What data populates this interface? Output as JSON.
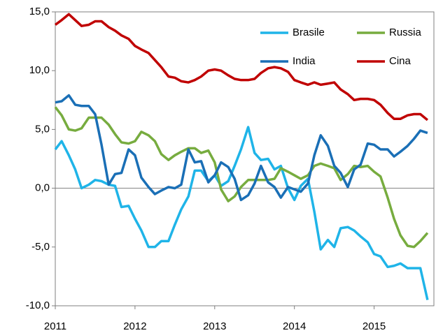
{
  "chart_data": {
    "type": "line",
    "x": [
      2011,
      2011.08,
      2011.17,
      2011.25,
      2011.33,
      2011.42,
      2011.5,
      2011.58,
      2011.67,
      2011.75,
      2011.83,
      2011.92,
      2012,
      2012.08,
      2012.17,
      2012.25,
      2012.33,
      2012.42,
      2012.5,
      2012.58,
      2012.67,
      2012.75,
      2012.83,
      2012.92,
      2013,
      2013.08,
      2013.17,
      2013.25,
      2013.33,
      2013.42,
      2013.5,
      2013.58,
      2013.67,
      2013.75,
      2013.83,
      2013.92,
      2014,
      2014.08,
      2014.17,
      2014.25,
      2014.33,
      2014.42,
      2014.5,
      2014.58,
      2014.67,
      2014.75,
      2014.83,
      2014.92,
      2015,
      2015.08,
      2015.17,
      2015.25,
      2015.33,
      2015.42,
      2015.5,
      2015.58,
      2015.67
    ],
    "series": [
      {
        "name": "Brasile",
        "color": "#1fb4e8",
        "values": [
          3.3,
          4.0,
          2.8,
          1.6,
          0.0,
          0.3,
          0.7,
          0.6,
          0.3,
          0.2,
          -1.6,
          -1.5,
          -2.6,
          -3.6,
          -5.0,
          -5.0,
          -4.5,
          -4.5,
          -3.1,
          -1.8,
          -0.7,
          1.5,
          1.5,
          0.6,
          1.1,
          0.2,
          0.6,
          1.9,
          3.3,
          5.2,
          3.0,
          2.4,
          2.5,
          1.6,
          1.9,
          0.0,
          -1.0,
          0.2,
          0.8,
          -2.0,
          -5.2,
          -4.4,
          -5.0,
          -3.4,
          -3.3,
          -3.6,
          -4.1,
          -4.6,
          -5.6,
          -5.8,
          -6.7,
          -6.6,
          -6.4,
          -6.8,
          -6.8,
          -6.8,
          -9.5
        ]
      },
      {
        "name": "Russia",
        "color": "#77ac3f",
        "values": [
          6.9,
          6.2,
          5.0,
          4.9,
          5.1,
          6.0,
          6.0,
          6.0,
          5.4,
          4.6,
          3.9,
          3.8,
          4.0,
          4.8,
          4.5,
          4.0,
          2.9,
          2.4,
          2.8,
          3.1,
          3.4,
          3.4,
          3.0,
          3.2,
          2.2,
          -0.1,
          -1.1,
          -0.7,
          0.1,
          0.7,
          0.7,
          0.7,
          0.7,
          0.8,
          1.7,
          1.4,
          1.1,
          0.8,
          1.1,
          1.9,
          2.1,
          1.9,
          1.7,
          0.7,
          1.2,
          1.9,
          1.8,
          1.9,
          1.4,
          1.0,
          -0.8,
          -2.6,
          -4.0,
          -4.9,
          -5.0,
          -4.5,
          -3.8
        ]
      },
      {
        "name": "India",
        "color": "#1a6fb6",
        "values": [
          7.3,
          7.4,
          7.9,
          7.1,
          7.0,
          7.0,
          6.3,
          3.7,
          0.3,
          1.2,
          1.3,
          3.3,
          2.8,
          0.9,
          0.1,
          -0.5,
          -0.2,
          0.1,
          0.0,
          0.3,
          3.3,
          2.2,
          2.3,
          0.5,
          1.1,
          2.2,
          1.8,
          0.8,
          -1.0,
          -0.6,
          0.4,
          1.9,
          0.5,
          0.1,
          -0.8,
          0.1,
          -0.1,
          -0.3,
          0.4,
          2.8,
          4.5,
          3.6,
          1.9,
          1.3,
          0.1,
          1.6,
          2.0,
          3.8,
          3.7,
          3.3,
          3.3,
          2.7,
          3.1,
          3.6,
          4.2,
          4.9,
          4.7
        ]
      },
      {
        "name": "Cina",
        "color": "#c00000",
        "values": [
          13.9,
          14.3,
          14.8,
          14.3,
          13.8,
          13.9,
          14.2,
          14.2,
          13.7,
          13.4,
          13.0,
          12.7,
          12.1,
          11.8,
          11.5,
          10.9,
          10.3,
          9.5,
          9.4,
          9.1,
          9.0,
          9.2,
          9.5,
          10.0,
          10.1,
          10.0,
          9.6,
          9.3,
          9.2,
          9.2,
          9.3,
          9.8,
          10.2,
          10.3,
          10.2,
          9.9,
          9.2,
          9.0,
          8.8,
          9.0,
          8.8,
          8.9,
          9.0,
          8.4,
          8.0,
          7.5,
          7.6,
          7.6,
          7.5,
          7.1,
          6.4,
          5.9,
          5.9,
          6.2,
          6.3,
          6.3,
          5.8
        ]
      }
    ],
    "xlim": [
      2011,
      2015.75
    ],
    "xticks": [
      2011,
      2012,
      2013,
      2014,
      2015
    ],
    "ylim": [
      -10,
      15
    ],
    "yticks": [
      {
        "value": -10,
        "label": "-10,0"
      },
      {
        "value": -5,
        "label": "-5,0"
      },
      {
        "value": 0,
        "label": "0,0"
      },
      {
        "value": 5,
        "label": "5,0"
      },
      {
        "value": 10,
        "label": "10,0"
      },
      {
        "value": 15,
        "label": "15,0"
      }
    ],
    "legend": "upper right"
  }
}
